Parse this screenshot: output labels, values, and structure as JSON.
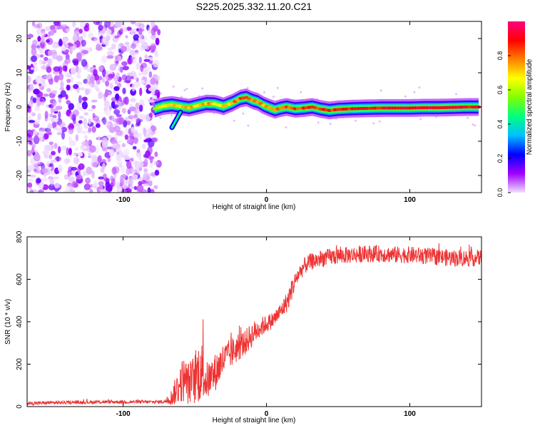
{
  "figure": {
    "title": "S225.2025.332.11.20.C21"
  },
  "chart_data": [
    {
      "type": "heatmap",
      "xlabel": "Height of straight line (km)",
      "ylabel": "Frequency (Hz)",
      "xlim": [
        -167,
        150
      ],
      "ylim": [
        -25,
        25
      ],
      "xticks": [
        -100,
        0,
        100
      ],
      "yticks": [
        -20,
        -10,
        0,
        10,
        20
      ],
      "noise_region": {
        "x_range": [
          -167,
          -75
        ],
        "description_value": "low-amplitude scattered noise"
      },
      "ridge": {
        "x": [
          -78,
          -72,
          -66,
          -60,
          -54,
          -48,
          -42,
          -36,
          -30,
          -24,
          -18,
          -14,
          -10,
          -6,
          -2,
          2,
          6,
          10,
          14,
          20,
          26,
          32,
          38,
          44,
          50,
          60,
          70,
          80,
          90,
          100,
          110,
          120,
          130,
          140,
          148
        ],
        "freq": [
          -0.5,
          0.3,
          0.6,
          0.2,
          -0.2,
          0.4,
          1.0,
          0.9,
          0.2,
          1.2,
          2.5,
          2.8,
          2.0,
          1.5,
          0.5,
          -0.2,
          -0.8,
          -0.3,
          0.0,
          -0.5,
          -0.3,
          0.0,
          -0.6,
          -1.0,
          -0.7,
          -0.5,
          -0.4,
          -0.3,
          -0.3,
          -0.3,
          -0.2,
          -0.2,
          -0.1,
          0.0,
          0.0
        ],
        "amp": [
          0.6,
          0.7,
          0.75,
          0.7,
          0.7,
          0.72,
          0.75,
          0.7,
          0.72,
          0.75,
          0.8,
          0.82,
          0.8,
          0.78,
          0.75,
          0.78,
          0.8,
          0.82,
          0.82,
          0.83,
          0.84,
          0.85,
          0.86,
          0.86,
          0.87,
          0.88,
          0.88,
          0.9,
          0.9,
          0.92,
          0.92,
          0.92,
          0.9,
          0.9,
          0.9
        ]
      },
      "branch": {
        "x": [
          -66,
          -64,
          -62,
          -60
        ],
        "freq": [
          -6,
          -4.5,
          -3,
          -1.5
        ]
      },
      "colorbar": {
        "label": "Normalized spectral amplitude",
        "range": [
          0,
          1
        ],
        "ticks": [
          "0.0",
          "0.2",
          "0.4",
          "0.6",
          "0.8"
        ],
        "colors": [
          "#f0e0ff",
          "#a000ff",
          "#0000ff",
          "#00bfff",
          "#00ff80",
          "#80ff00",
          "#ffff00",
          "#ff8000",
          "#ff0000",
          "#ff0080"
        ]
      }
    },
    {
      "type": "line",
      "xlabel": "Height of straight line (km)",
      "ylabel": "SNR (10 * v/v)",
      "xlim": [
        -167,
        150
      ],
      "ylim": [
        0,
        800
      ],
      "xticks": [
        -100,
        0,
        100
      ],
      "yticks": [
        0,
        200,
        400,
        600,
        800
      ],
      "series": [
        {
          "name": "SNR",
          "color": "#ee3333",
          "x": [
            -167,
            -150,
            -130,
            -110,
            -90,
            -75,
            -70,
            -66,
            -62,
            -58,
            -55,
            -52,
            -49,
            -46,
            -44,
            -42,
            -38,
            -34,
            -30,
            -25,
            -20,
            -15,
            -10,
            -5,
            0,
            5,
            10,
            15,
            18,
            22,
            26,
            30,
            40,
            50,
            60,
            70,
            80,
            90,
            100,
            110,
            120,
            130,
            140,
            150
          ],
          "mean": [
            15,
            18,
            20,
            22,
            22,
            22,
            25,
            45,
            90,
            130,
            110,
            120,
            140,
            180,
            150,
            120,
            140,
            180,
            220,
            250,
            280,
            300,
            340,
            370,
            390,
            410,
            450,
            500,
            560,
            620,
            660,
            680,
            700,
            710,
            715,
            720,
            720,
            715,
            715,
            710,
            705,
            700,
            700,
            700
          ],
          "spread": [
            8,
            8,
            8,
            8,
            8,
            8,
            12,
            40,
            80,
            110,
            100,
            110,
            130,
            160,
            120,
            90,
            90,
            90,
            80,
            70,
            70,
            60,
            60,
            50,
            40,
            40,
            40,
            50,
            50,
            40,
            40,
            40,
            40,
            40,
            40,
            40,
            40,
            40,
            40,
            40,
            40,
            40,
            40,
            40
          ]
        }
      ]
    }
  ]
}
